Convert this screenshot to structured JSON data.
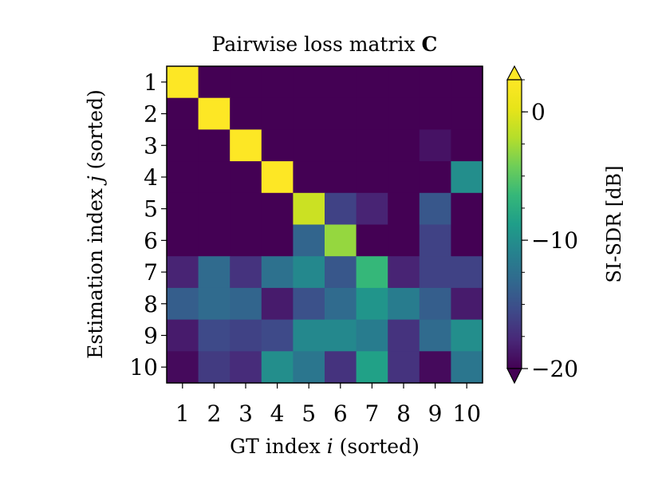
{
  "chart_data": {
    "type": "heatmap",
    "title_text": "Pairwise loss matrix ",
    "title_bold": "C",
    "xlabel_text": "GT index ",
    "xlabel_var": "i",
    "xlabel_suffix": " (sorted)",
    "ylabel_text": "Estimation index ",
    "ylabel_var": "j",
    "ylabel_suffix": " (sorted)",
    "x_ticks": [
      "1",
      "2",
      "3",
      "4",
      "5",
      "6",
      "7",
      "8",
      "9",
      "10"
    ],
    "y_ticks": [
      "1",
      "2",
      "3",
      "4",
      "5",
      "6",
      "7",
      "8",
      "9",
      "10"
    ],
    "colorbar": {
      "label": "SI-SDR [dB]",
      "range": [
        -20,
        2.5
      ],
      "ticks": [
        0,
        -10,
        -20
      ],
      "tick_labels": [
        "0",
        "−10",
        "−20"
      ],
      "extend": "both",
      "colormap": "viridis"
    },
    "values": [
      [
        2.5,
        -20,
        -20,
        -20,
        -20,
        -20,
        -20,
        -20,
        -20,
        -20
      ],
      [
        -20,
        2.5,
        -20,
        -20,
        -20,
        -20,
        -20,
        -20,
        -20,
        -20
      ],
      [
        -20,
        -20,
        2.5,
        -20,
        -20,
        -20,
        -20,
        -20,
        -19,
        -20
      ],
      [
        -20,
        -20,
        -20,
        2.5,
        -20,
        -20,
        -20,
        -20,
        -20,
        -10
      ],
      [
        -20,
        -20,
        -20,
        -20,
        -1,
        -16,
        -18,
        -20,
        -14.5,
        -20
      ],
      [
        -20,
        -20,
        -20,
        -20,
        -13.5,
        -3,
        -20,
        -20,
        -16,
        -20
      ],
      [
        -18,
        -13,
        -17,
        -12.5,
        -10.5,
        -14.5,
        -6.5,
        -18,
        -16,
        -16
      ],
      [
        -14,
        -13,
        -13.5,
        -18.5,
        -15,
        -13,
        -9.5,
        -11.5,
        -14,
        -18.5
      ],
      [
        -18.5,
        -15.5,
        -16,
        -15.5,
        -10.5,
        -10.5,
        -11.5,
        -17,
        -13,
        -10
      ],
      [
        -19.5,
        -16.5,
        -17.5,
        -10,
        -12,
        -17,
        -8.5,
        -17,
        -19.5,
        -12
      ]
    ]
  }
}
